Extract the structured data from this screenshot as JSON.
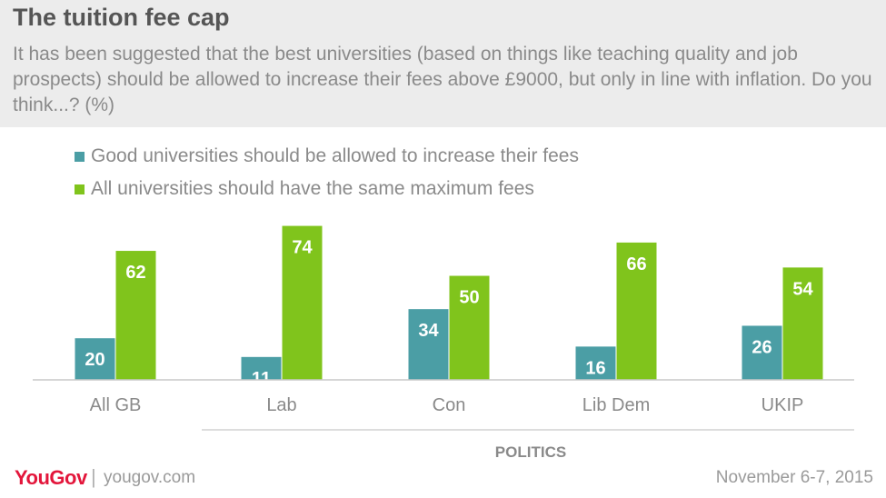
{
  "header": {
    "title": "The tuition fee cap",
    "subtitle": "It has been suggested that the best universities (based on things like teaching quality and job prospects) should be allowed to increase their fees above £9000, but only in line with inflation. Do you think...? (%)"
  },
  "footer": {
    "logo": "YouGov",
    "separator": "|",
    "site": "yougov.com",
    "date": "November 6-7, 2015"
  },
  "chart_data": {
    "type": "bar",
    "title": "The tuition fee cap",
    "categories": [
      "All GB",
      "Lab",
      "Con",
      "Lib Dem",
      "UKIP"
    ],
    "series": [
      {
        "name": "Good universities should be allowed to increase their fees",
        "color": "#4b9ea5",
        "values": [
          20,
          11,
          34,
          16,
          26
        ]
      },
      {
        "name": "All universities should have the same maximum fees",
        "color": "#80c41c",
        "values": [
          62,
          74,
          50,
          66,
          54
        ]
      }
    ],
    "group_label": "POLITICS",
    "group_categories": [
      "Lab",
      "Con",
      "Lib Dem",
      "UKIP"
    ],
    "ylim": [
      0,
      76
    ],
    "xlabel": "",
    "ylabel": "",
    "legend": "top-left",
    "grid": false
  }
}
